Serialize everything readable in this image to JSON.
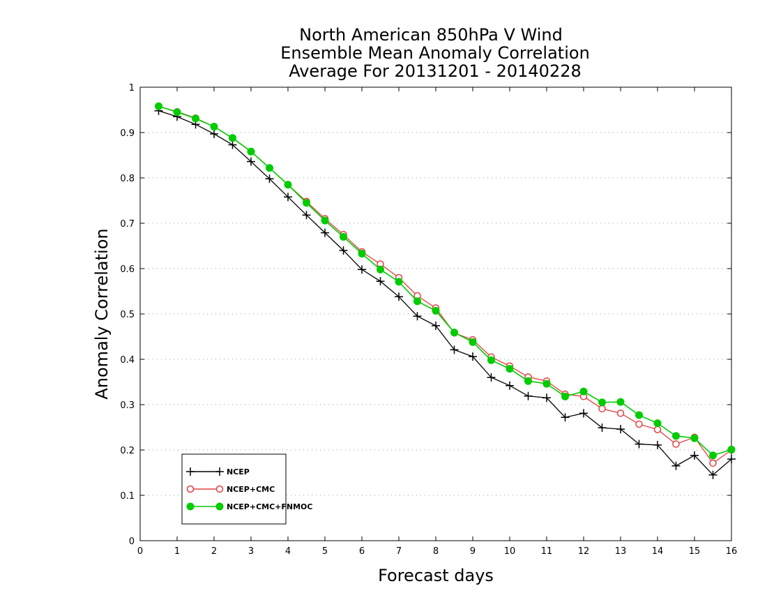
{
  "chart_data": {
    "type": "line",
    "title": "North American 850hPa V Wind",
    "subtitle": [
      "Ensemble Mean Anomaly Correlation",
      "Average For 20131201 - 20140228"
    ],
    "xlabel": "Forecast days",
    "ylabel": "Anomaly Correlation",
    "xlim": [
      0,
      16
    ],
    "ylim": [
      0,
      1
    ],
    "x_ticks": [
      0,
      1,
      2,
      3,
      4,
      5,
      6,
      7,
      8,
      9,
      10,
      11,
      12,
      13,
      14,
      15,
      16
    ],
    "y_ticks": [
      0,
      0.1,
      0.2,
      0.3,
      0.4,
      0.5,
      0.6,
      0.7,
      0.8,
      0.9,
      1
    ],
    "grid": "horizontal dotted",
    "legend_position": "bottom-left",
    "x": [
      0.5,
      1,
      1.5,
      2,
      2.5,
      3,
      3.5,
      4,
      4.5,
      5,
      5.5,
      6,
      6.5,
      7,
      7.5,
      8,
      8.5,
      9,
      9.5,
      10,
      10.5,
      11,
      11.5,
      12,
      12.5,
      13,
      13.5,
      14,
      14.5,
      15,
      15.5,
      16
    ],
    "series": [
      {
        "name": "NCEP",
        "color": "#000000",
        "marker": "plus",
        "values": [
          0.948,
          0.935,
          0.918,
          0.897,
          0.873,
          0.836,
          0.798,
          0.758,
          0.718,
          0.679,
          0.64,
          0.598,
          0.572,
          0.538,
          0.495,
          0.474,
          0.421,
          0.406,
          0.36,
          0.342,
          0.319,
          0.315,
          0.272,
          0.281,
          0.249,
          0.246,
          0.213,
          0.211,
          0.165,
          0.188,
          0.145,
          0.18
        ]
      },
      {
        "name": "NCEP+CMC",
        "color": "#e04040",
        "marker": "open-circle",
        "values": [
          0.958,
          0.946,
          0.932,
          0.913,
          0.888,
          0.858,
          0.822,
          0.785,
          0.748,
          0.71,
          0.675,
          0.637,
          0.61,
          0.58,
          0.54,
          0.513,
          0.458,
          0.443,
          0.405,
          0.385,
          0.361,
          0.352,
          0.323,
          0.318,
          0.291,
          0.281,
          0.257,
          0.245,
          0.213,
          0.228,
          0.171,
          0.2
        ]
      },
      {
        "name": "NCEP+CMC+FNMOC",
        "color": "#00cc00",
        "marker": "filled-circle",
        "values": [
          0.958,
          0.945,
          0.931,
          0.913,
          0.888,
          0.858,
          0.822,
          0.785,
          0.745,
          0.706,
          0.67,
          0.633,
          0.598,
          0.571,
          0.528,
          0.507,
          0.459,
          0.438,
          0.398,
          0.379,
          0.352,
          0.346,
          0.318,
          0.329,
          0.305,
          0.306,
          0.277,
          0.259,
          0.231,
          0.226,
          0.188,
          0.201
        ]
      }
    ]
  }
}
